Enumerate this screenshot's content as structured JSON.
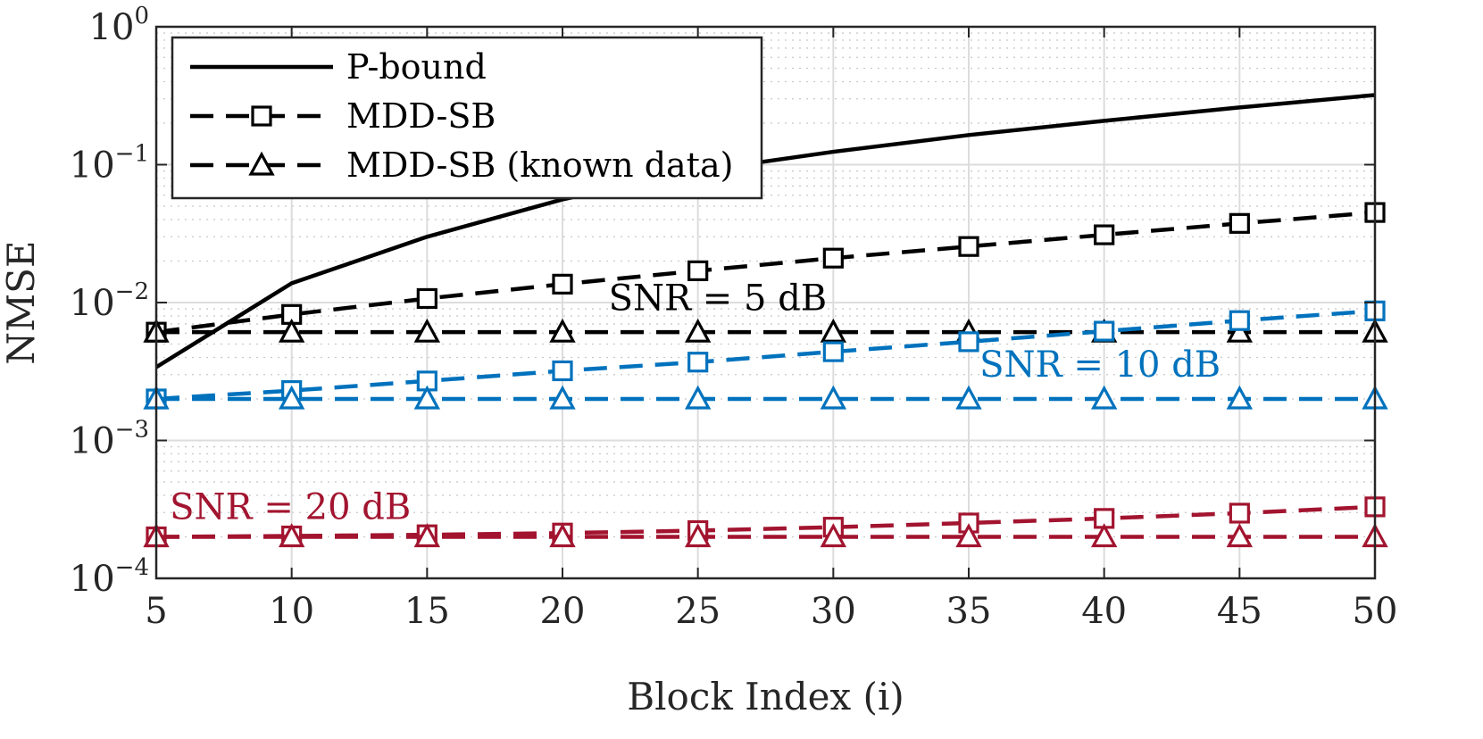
{
  "chart_data": {
    "type": "line",
    "title": "",
    "xlabel": "Block Index (i)",
    "ylabel": "NMSE",
    "y_scale": "log",
    "xlim": [
      5,
      50
    ],
    "ylim": [
      0.0001,
      1
    ],
    "x_ticks": [
      "5",
      "10",
      "15",
      "20",
      "25",
      "30",
      "35",
      "40",
      "45",
      "50"
    ],
    "y_ticks": [
      {
        "base": "10",
        "exp": "0",
        "value": 1
      },
      {
        "base": "10",
        "exp": "−1",
        "value": 0.1
      },
      {
        "base": "10",
        "exp": "−2",
        "value": 0.01
      },
      {
        "base": "10",
        "exp": "−3",
        "value": 0.001
      },
      {
        "base": "10",
        "exp": "−4",
        "value": 0.0001
      }
    ],
    "grid": true,
    "legend_position": "top-left",
    "legend": [
      {
        "label": "P-bound",
        "style": "solid",
        "marker": "none"
      },
      {
        "label": "MDD-SB",
        "style": "dashed",
        "marker": "square"
      },
      {
        "label": "MDD-SB (known data)",
        "style": "dashed",
        "marker": "triangle"
      }
    ],
    "x": [
      5,
      10,
      15,
      20,
      25,
      30,
      35,
      40,
      45,
      50
    ],
    "series": [
      {
        "group": "snr5",
        "kind": "P-bound",
        "color": "#000000",
        "style": "solid",
        "marker": "none",
        "values": [
          0.0034,
          0.0138,
          0.03,
          0.056,
          0.09,
          0.124,
          0.164,
          0.208,
          0.26,
          0.32
        ]
      },
      {
        "group": "snr5",
        "kind": "MDD-SB",
        "color": "#000000",
        "style": "dashed",
        "marker": "square",
        "values": [
          0.0061,
          0.0082,
          0.0107,
          0.0136,
          0.017,
          0.021,
          0.0255,
          0.031,
          0.0375,
          0.045
        ]
      },
      {
        "group": "snr5",
        "kind": "MDD-SB (known data)",
        "color": "#000000",
        "style": "dashed",
        "marker": "triangle",
        "values": [
          0.0061,
          0.0061,
          0.0061,
          0.0061,
          0.0061,
          0.0061,
          0.0061,
          0.0061,
          0.0061,
          0.0061
        ]
      },
      {
        "group": "snr10",
        "kind": "MDD-SB",
        "color": "#0072BD",
        "style": "dashed",
        "marker": "square",
        "values": [
          0.002,
          0.0023,
          0.0027,
          0.0032,
          0.0037,
          0.0044,
          0.0052,
          0.0062,
          0.0074,
          0.0087
        ]
      },
      {
        "group": "snr10",
        "kind": "MDD-SB (known data)",
        "color": "#0072BD",
        "style": "dashed",
        "marker": "triangle",
        "values": [
          0.002,
          0.002,
          0.002,
          0.002,
          0.002,
          0.002,
          0.002,
          0.002,
          0.002,
          0.002
        ]
      },
      {
        "group": "snr20",
        "kind": "MDD-SB",
        "color": "#A2142F",
        "style": "dashed",
        "marker": "square",
        "values": [
          0.0002,
          0.000203,
          0.000207,
          0.000213,
          0.000222,
          0.000235,
          0.000252,
          0.000272,
          0.000297,
          0.00033
        ]
      },
      {
        "group": "snr20",
        "kind": "MDD-SB (known data)",
        "color": "#A2142F",
        "style": "dashed",
        "marker": "triangle",
        "values": [
          0.0002,
          0.0002,
          0.0002,
          0.0002,
          0.0002,
          0.0002,
          0.0002,
          0.0002,
          0.0002,
          0.0002
        ]
      }
    ],
    "annotations": [
      {
        "id": "snr5",
        "text": "SNR = 5 dB",
        "color": "#000000"
      },
      {
        "id": "snr10",
        "text": "SNR = 10 dB",
        "color": "#0072BD"
      },
      {
        "id": "snr20",
        "text": "SNR = 20 dB",
        "color": "#A2142F"
      }
    ]
  }
}
